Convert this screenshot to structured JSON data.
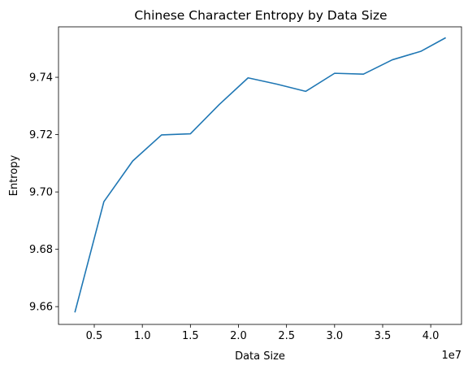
{
  "chart_data": {
    "type": "line",
    "title": "Chinese Character Entropy by Data Size",
    "xlabel": "Data Size",
    "ylabel": "Entropy",
    "x_offset_label": "1e7",
    "xlim": [
      1280000,
      43200000
    ],
    "ylim": [
      9.6538,
      9.7576
    ],
    "x_scale": 10000000,
    "x_ticks": [
      0.5,
      1.0,
      1.5,
      2.0,
      2.5,
      3.0,
      3.5,
      4.0
    ],
    "x_tick_labels": [
      "0.5",
      "1.0",
      "1.5",
      "2.0",
      "2.5",
      "3.0",
      "3.5",
      "4.0"
    ],
    "y_ticks": [
      9.66,
      9.68,
      9.7,
      9.72,
      9.74
    ],
    "y_tick_labels": [
      "9.66",
      "9.68",
      "9.70",
      "9.72",
      "9.74"
    ],
    "grid": false,
    "legend": "none",
    "series": [
      {
        "color": "#1f77b4",
        "x": [
          3000000,
          6000000,
          9000000,
          12000000,
          15000000,
          18000000,
          21000000,
          24000000,
          27000000,
          30000000,
          33000000,
          36000000,
          39000000,
          41500000
        ],
        "y": [
          9.6582,
          9.6966,
          9.7108,
          9.7199,
          9.7203,
          9.7305,
          9.7398,
          9.7376,
          9.7351,
          9.7414,
          9.7411,
          9.7461,
          9.7491,
          9.7537
        ]
      }
    ]
  }
}
